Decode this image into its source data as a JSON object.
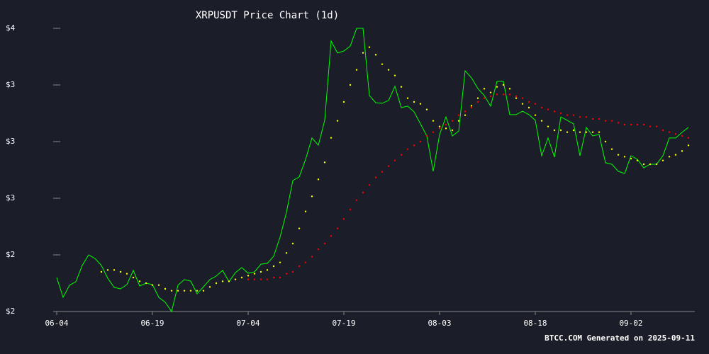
{
  "chart_data": {
    "type": "line",
    "title": "XRPUSDT Price Chart (1d)",
    "footer": "BTCC.COM Generated on 2025-09-11",
    "categories": [
      "06-04",
      null,
      null,
      null,
      null,
      null,
      null,
      null,
      null,
      null,
      null,
      null,
      null,
      null,
      null,
      "06-19",
      null,
      null,
      null,
      null,
      null,
      null,
      null,
      null,
      null,
      null,
      null,
      null,
      null,
      null,
      "07-04",
      null,
      null,
      null,
      null,
      null,
      null,
      null,
      null,
      null,
      null,
      null,
      null,
      null,
      null,
      "07-19",
      null,
      null,
      null,
      null,
      null,
      null,
      null,
      null,
      null,
      null,
      null,
      null,
      null,
      null,
      "08-03",
      null,
      null,
      null,
      null,
      null,
      null,
      null,
      null,
      null,
      null,
      null,
      null,
      null,
      null,
      "08-18",
      null,
      null,
      null,
      null,
      null,
      null,
      null,
      null,
      null,
      null,
      null,
      null,
      null,
      null,
      "09-02",
      null,
      null,
      null,
      null,
      null,
      null,
      null,
      null,
      null
    ],
    "series": [
      {
        "color": "#00ff00",
        "marker": "line",
        "values": [
          2.28,
          2.175,
          2.239,
          2.258,
          2.344,
          2.4,
          2.381,
          2.344,
          2.276,
          2.228,
          2.22,
          2.243,
          2.318,
          2.235,
          2.25,
          2.243,
          2.175,
          2.149,
          2.1,
          2.239,
          2.269,
          2.261,
          2.194,
          2.231,
          2.269,
          2.288,
          2.318,
          2.258,
          2.306,
          2.333,
          2.303,
          2.31,
          2.351,
          2.355,
          2.393,
          2.494,
          2.625,
          2.794,
          2.813,
          2.906,
          3.019,
          2.981,
          3.113,
          3.533,
          3.469,
          3.48,
          3.506,
          3.6,
          3.6,
          3.244,
          3.206,
          3.203,
          3.218,
          3.293,
          3.18,
          3.188,
          3.158,
          3.094,
          3.03,
          2.843,
          3.038,
          3.131,
          3.03,
          3.056,
          3.375,
          3.338,
          3.281,
          3.244,
          3.188,
          3.319,
          3.319,
          3.143,
          3.143,
          3.161,
          3.143,
          3.113,
          2.925,
          3.019,
          2.918,
          3.131,
          3.113,
          3.094,
          2.925,
          3.075,
          3.03,
          3.038,
          2.888,
          2.88,
          2.843,
          2.831,
          2.925,
          2.906,
          2.861,
          2.88,
          2.88,
          2.925,
          3.019,
          3.019,
          3.049,
          3.075
        ]
      },
      {
        "color": "#ffff00",
        "marker": "dot",
        "values": [
          null,
          null,
          null,
          null,
          null,
          null,
          null,
          2.31,
          2.32,
          2.32,
          2.31,
          2.3,
          2.28,
          2.26,
          2.25,
          2.24,
          2.24,
          2.22,
          2.21,
          2.21,
          2.21,
          2.21,
          2.21,
          2.21,
          2.23,
          2.25,
          2.26,
          2.26,
          2.27,
          2.28,
          2.29,
          2.3,
          2.31,
          2.32,
          2.34,
          2.36,
          2.41,
          2.46,
          2.54,
          2.63,
          2.71,
          2.8,
          2.89,
          3.02,
          3.11,
          3.21,
          3.3,
          3.38,
          3.47,
          3.5,
          3.46,
          3.41,
          3.38,
          3.35,
          3.29,
          3.23,
          3.21,
          3.2,
          3.17,
          3.11,
          3.08,
          3.07,
          3.06,
          3.11,
          3.14,
          3.19,
          3.23,
          3.28,
          3.26,
          3.29,
          3.3,
          3.28,
          3.23,
          3.2,
          3.18,
          3.14,
          3.11,
          3.08,
          3.06,
          3.06,
          3.05,
          3.06,
          3.05,
          3.05,
          3.05,
          3.05,
          3.0,
          2.96,
          2.93,
          2.92,
          2.91,
          2.9,
          2.88,
          2.88,
          2.88,
          2.9,
          2.92,
          2.93,
          2.95,
          2.98
        ]
      },
      {
        "color": "#ff0000",
        "marker": "dot",
        "values": [
          null,
          null,
          null,
          null,
          null,
          null,
          null,
          null,
          null,
          null,
          null,
          null,
          null,
          null,
          null,
          null,
          null,
          null,
          null,
          null,
          null,
          null,
          null,
          null,
          null,
          null,
          null,
          null,
          null,
          null,
          2.27,
          2.27,
          2.27,
          2.27,
          2.28,
          2.28,
          2.3,
          2.31,
          2.34,
          2.36,
          2.39,
          2.43,
          2.46,
          2.5,
          2.54,
          2.59,
          2.64,
          2.69,
          2.73,
          2.77,
          2.81,
          2.84,
          2.87,
          2.9,
          2.93,
          2.96,
          2.98,
          3.0,
          3.03,
          3.05,
          3.07,
          3.09,
          3.11,
          3.14,
          3.16,
          3.18,
          3.21,
          3.23,
          3.24,
          3.25,
          3.25,
          3.25,
          3.24,
          3.23,
          3.21,
          3.2,
          3.18,
          3.17,
          3.16,
          3.15,
          3.14,
          3.14,
          3.13,
          3.13,
          3.12,
          3.12,
          3.11,
          3.11,
          3.1,
          3.09,
          3.09,
          3.09,
          3.09,
          3.08,
          3.08,
          3.06,
          3.05,
          3.04,
          3.03,
          3.02
        ]
      }
    ],
    "ylim": [
      2.1,
      3.6
    ],
    "yticks": [
      {
        "value": 3.6,
        "label": "$4"
      },
      {
        "value": 3.3,
        "label": "$3"
      },
      {
        "value": 3.0,
        "label": "$3"
      },
      {
        "value": 2.7,
        "label": "$3"
      },
      {
        "value": 2.4,
        "label": "$2"
      },
      {
        "value": 2.1,
        "label": "$2"
      }
    ],
    "background": "#1b1e28"
  }
}
